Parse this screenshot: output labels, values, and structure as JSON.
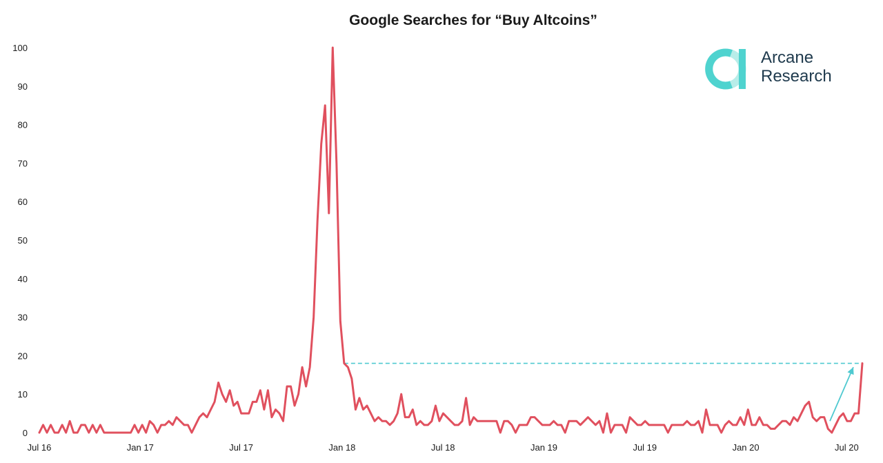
{
  "chart_data": {
    "type": "line",
    "title": "Google Searches for “Buy Altcoins”",
    "xlabel": "",
    "ylabel": "",
    "ylim": [
      0,
      100
    ],
    "yticks": [
      "0",
      "10",
      "20",
      "30",
      "40",
      "50",
      "60",
      "70",
      "80",
      "90",
      "100"
    ],
    "xticks": [
      "Jul 16",
      "Jan 17",
      "Jul 17",
      "Jan 18",
      "Jul 18",
      "Jan 19",
      "Jul 19",
      "Jan 20",
      "Jul 20"
    ],
    "grid": false,
    "series": [
      {
        "color": "#e0505e",
        "values": [
          0,
          2,
          0,
          2,
          0,
          0,
          2,
          0,
          3,
          0,
          0,
          2,
          2,
          0,
          2,
          0,
          2,
          0,
          0,
          0,
          0,
          0,
          0,
          0,
          0,
          2,
          0,
          2,
          0,
          3,
          2,
          0,
          2,
          2,
          3,
          2,
          4,
          3,
          2,
          2,
          0,
          2,
          4,
          5,
          4,
          6,
          8,
          13,
          10,
          8,
          11,
          7,
          8,
          5,
          5,
          5,
          8,
          8,
          11,
          6,
          11,
          4,
          6,
          5,
          3,
          12,
          12,
          7,
          10,
          17,
          12,
          17,
          30,
          55,
          75,
          85,
          57,
          100,
          70,
          29,
          18,
          17,
          14,
          6,
          9,
          6,
          7,
          5,
          3,
          4,
          3,
          3,
          2,
          3,
          5,
          10,
          4,
          4,
          6,
          2,
          3,
          2,
          2,
          3,
          7,
          3,
          5,
          4,
          3,
          2,
          2,
          3,
          9,
          2,
          4,
          3,
          3,
          3,
          3,
          3,
          3,
          0,
          3,
          3,
          2,
          0,
          2,
          2,
          2,
          4,
          4,
          3,
          2,
          2,
          2,
          3,
          2,
          2,
          0,
          3,
          3,
          3,
          2,
          3,
          4,
          3,
          2,
          3,
          0,
          5,
          0,
          2,
          2,
          2,
          0,
          4,
          3,
          2,
          2,
          3,
          2,
          2,
          2,
          2,
          2,
          0,
          2,
          2,
          2,
          2,
          3,
          2,
          2,
          3,
          0,
          6,
          2,
          2,
          2,
          0,
          2,
          3,
          2,
          2,
          4,
          2,
          6,
          2,
          2,
          4,
          2,
          2,
          1,
          1,
          2,
          3,
          3,
          2,
          4,
          3,
          5,
          7,
          8,
          4,
          3,
          4,
          4,
          1,
          0,
          2,
          4,
          5,
          3,
          3,
          5,
          5,
          18
        ]
      }
    ],
    "annotations": [
      {
        "type": "reference-line",
        "style": "dashed",
        "color": "#4fc9d0",
        "y": 18
      },
      {
        "type": "arrow",
        "color": "#4fc9d0",
        "from_y": 3,
        "to_y": 17
      }
    ]
  },
  "logo": {
    "line1": "Arcane",
    "line2": "Research",
    "accent_color": "#4fd3cf",
    "accent_light_color": "#b8ede9"
  }
}
